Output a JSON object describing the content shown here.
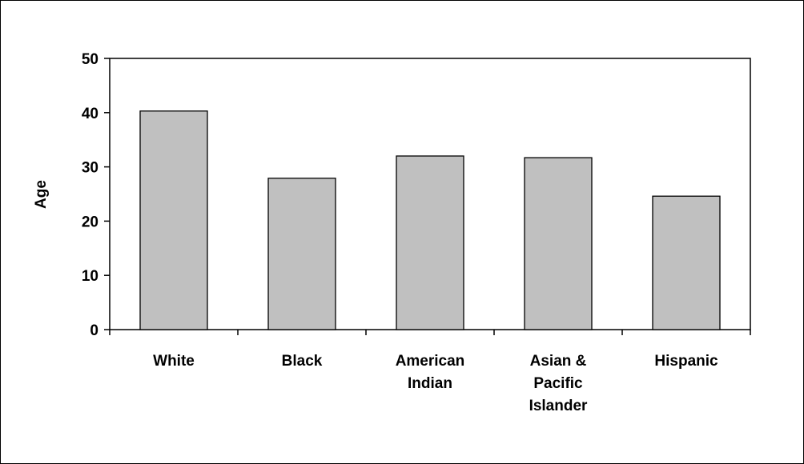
{
  "chart_data": {
    "type": "bar",
    "title": "",
    "xlabel": "",
    "ylabel": "Age",
    "ylim": [
      0,
      50
    ],
    "yticks": [
      0,
      10,
      20,
      30,
      40,
      50
    ],
    "grid": false,
    "bar_color": "#c0c0c0",
    "categories": [
      [
        "White"
      ],
      [
        "Black"
      ],
      [
        "American",
        "Indian"
      ],
      [
        "Asian &",
        "Pacific",
        "Islander"
      ],
      [
        "Hispanic"
      ]
    ],
    "values": [
      40.3,
      27.9,
      32.0,
      31.7,
      24.6
    ]
  }
}
